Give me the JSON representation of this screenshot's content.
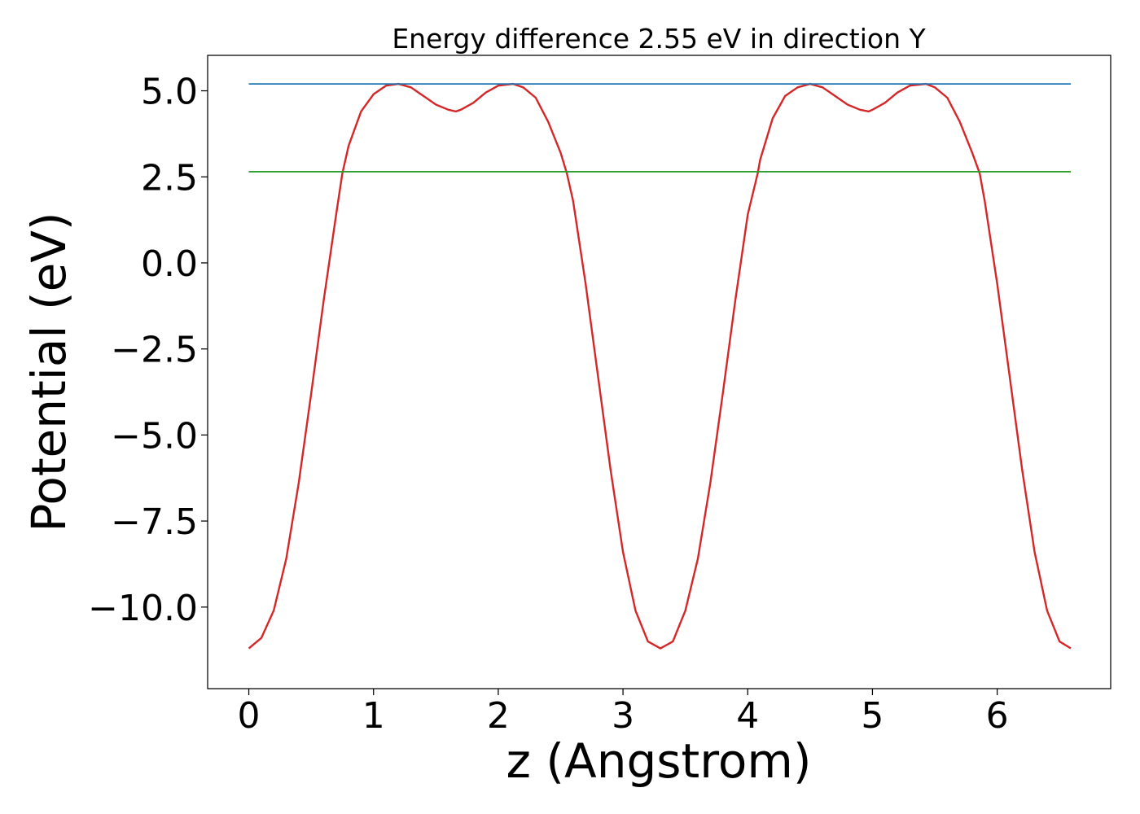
{
  "chart_data": {
    "type": "line",
    "title": "Energy difference 2.55 eV in direction Y",
    "xlabel": "z (Angstrom)",
    "ylabel": "Potential (eV)",
    "xlim": [
      -0.33,
      6.91
    ],
    "ylim": [
      -12.37,
      6.03
    ],
    "xticks": [
      0,
      1,
      2,
      3,
      4,
      5,
      6
    ],
    "xtick_labels": [
      "0",
      "1",
      "2",
      "3",
      "4",
      "5",
      "6"
    ],
    "yticks": [
      5.0,
      2.5,
      0.0,
      -2.5,
      -5.0,
      -7.5,
      -10.0
    ],
    "ytick_labels": [
      "5.0",
      "2.5",
      "0.0",
      "−2.5",
      "−5.0",
      "−7.5",
      "−10.0"
    ],
    "grid": false,
    "legend": "none",
    "series": [
      {
        "color": "#d62728",
        "style": "line",
        "x": [
          0.0,
          0.1,
          0.2,
          0.3,
          0.4,
          0.5,
          0.6,
          0.7,
          0.75,
          0.8,
          0.9,
          1.0,
          1.1,
          1.2,
          1.3,
          1.4,
          1.5,
          1.6,
          1.66,
          1.7,
          1.8,
          1.9,
          2.0,
          2.12,
          2.2,
          2.3,
          2.4,
          2.5,
          2.55,
          2.6,
          2.7,
          2.8,
          2.9,
          3.0,
          3.1,
          3.2,
          3.3,
          3.4,
          3.5,
          3.6,
          3.7,
          3.8,
          3.9,
          4.0,
          4.08,
          4.1,
          4.2,
          4.3,
          4.4,
          4.5,
          4.6,
          4.7,
          4.8,
          4.9,
          4.97,
          5.0,
          5.1,
          5.2,
          5.3,
          5.43,
          5.5,
          5.6,
          5.7,
          5.8,
          5.86,
          5.9,
          6.0,
          6.1,
          6.2,
          6.3,
          6.4,
          6.5,
          6.59
        ],
        "y": [
          -11.2,
          -10.9,
          -10.1,
          -8.6,
          -6.4,
          -3.8,
          -1.1,
          1.4,
          2.6,
          3.4,
          4.4,
          4.9,
          5.15,
          5.2,
          5.1,
          4.85,
          4.6,
          4.45,
          4.4,
          4.45,
          4.65,
          4.95,
          5.15,
          5.2,
          5.1,
          4.8,
          4.1,
          3.2,
          2.6,
          1.8,
          -0.6,
          -3.3,
          -6.0,
          -8.4,
          -10.1,
          -11.0,
          -11.2,
          -11.0,
          -10.1,
          -8.6,
          -6.4,
          -3.8,
          -1.1,
          1.4,
          2.6,
          3.0,
          4.2,
          4.85,
          5.1,
          5.2,
          5.1,
          4.85,
          4.6,
          4.45,
          4.4,
          4.45,
          4.65,
          4.95,
          5.15,
          5.2,
          5.1,
          4.8,
          4.1,
          3.2,
          2.6,
          1.8,
          -0.6,
          -3.3,
          -6.0,
          -8.4,
          -10.1,
          -11.0,
          -11.2
        ]
      },
      {
        "color": "#1f77b4",
        "style": "hline",
        "x": [
          0.0,
          6.59
        ],
        "y": [
          5.2,
          5.2
        ]
      },
      {
        "color": "#2ca02c",
        "style": "hline",
        "x": [
          0.0,
          6.59
        ],
        "y": [
          2.65,
          2.65
        ]
      }
    ]
  }
}
